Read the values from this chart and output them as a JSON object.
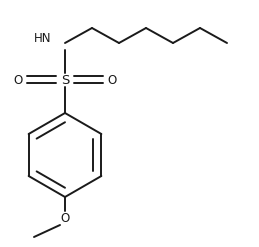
{
  "bg_color": "#ffffff",
  "line_color": "#1a1a1a",
  "line_width": 1.4,
  "font_size": 8.5,
  "figsize": [
    2.59,
    2.47
  ],
  "dpi": 100,
  "hn_label": "HN",
  "s_label": "S",
  "o_label": "O",
  "o_right_label": "O",
  "methoxy_o_label": "O"
}
